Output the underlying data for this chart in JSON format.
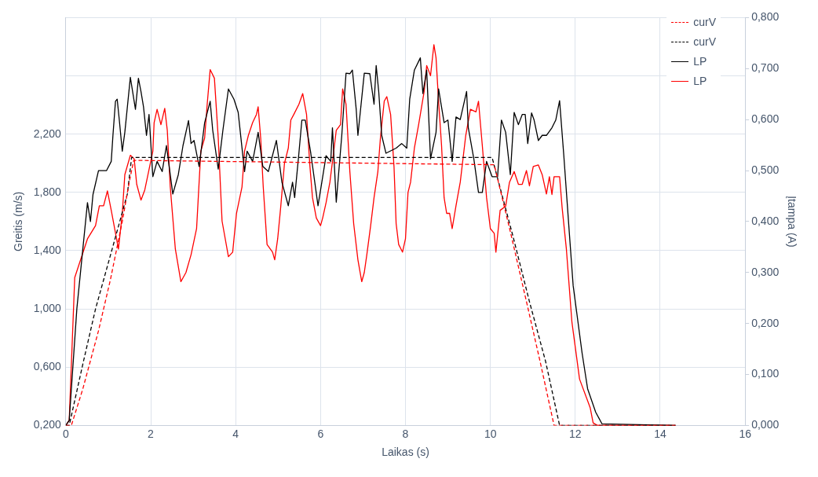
{
  "chart_data": {
    "type": "line",
    "xlabel": "Laikas (s)",
    "ylabel": "Greitis (m/s)",
    "y2label": "Įtampa (A)",
    "xlim": [
      0,
      16
    ],
    "xticks": [
      0,
      2,
      4,
      6,
      8,
      10,
      12,
      14,
      16
    ],
    "ylim": [
      0.2,
      3.0
    ],
    "yticks": [
      {
        "value": 0.2,
        "label": "0,200"
      },
      {
        "value": 0.6,
        "label": "0,600"
      },
      {
        "value": 1.0,
        "label": "1,000"
      },
      {
        "value": 1.4,
        "label": "1,400"
      },
      {
        "value": 1.8,
        "label": "1,800"
      },
      {
        "value": 2.2,
        "label": "2,200"
      },
      {
        "value": 2.6,
        "label": null
      },
      {
        "value": 3.0,
        "label": null
      }
    ],
    "y2lim": [
      0,
      0.8
    ],
    "y2ticks": [
      {
        "value": 0,
        "label": "0,000"
      },
      {
        "value": 0.1,
        "label": "0,100"
      },
      {
        "value": 0.2,
        "label": "0,200"
      },
      {
        "value": 0.3,
        "label": "0,300"
      },
      {
        "value": 0.4,
        "label": "0,400"
      },
      {
        "value": 0.5,
        "label": "0,500"
      },
      {
        "value": 0.6,
        "label": "0,600"
      },
      {
        "value": 0.7,
        "label": "0,700"
      },
      {
        "value": 0.8,
        "label": "0,800"
      }
    ],
    "grid": true,
    "legend": "top right",
    "marker": "none",
    "series": [
      {
        "name": "curV",
        "color": "#ff0000",
        "line_style": "dashed",
        "x": [
          0,
          0.13,
          0.4,
          0.77,
          1.05,
          1.33,
          1.5,
          1.6,
          10.09,
          10.47,
          10.85,
          11.17,
          11.5,
          14.36
        ],
        "values": [
          0.2,
          0.2,
          0.45,
          0.85,
          1.2,
          1.6,
          1.88,
          2.02,
          1.99,
          1.53,
          1.05,
          0.64,
          0.2,
          0.2
        ]
      },
      {
        "name": "curV",
        "color": "#000000",
        "line_style": "dashed",
        "x": [
          0,
          0.08,
          0.4,
          0.7,
          1.1,
          1.45,
          1.55,
          10.04,
          10.54,
          10.92,
          11.3,
          11.63,
          14.36
        ],
        "values": [
          0.2,
          0.2,
          0.62,
          1.0,
          1.42,
          1.79,
          2.04,
          2.04,
          1.49,
          1.05,
          0.64,
          0.2,
          0.2
        ]
      },
      {
        "name": "LP",
        "color": "#000000",
        "line_style": "solid",
        "axis": "y2",
        "x": [
          0,
          0.08,
          0.26,
          0.51,
          0.58,
          0.64,
          0.77,
          0.96,
          1.07,
          1.11,
          1.17,
          1.21,
          1.26,
          1.33,
          1.39,
          1.52,
          1.64,
          1.71,
          1.77,
          1.83,
          1.9,
          1.96,
          2.05,
          2.15,
          2.27,
          2.37,
          2.52,
          2.65,
          2.76,
          2.89,
          2.95,
          3.02,
          3.14,
          3.27,
          3.4,
          3.46,
          3.59,
          3.7,
          3.83,
          3.96,
          4.06,
          4.21,
          4.27,
          4.4,
          4.53,
          4.64,
          4.77,
          4.96,
          5.09,
          5.24,
          5.34,
          5.39,
          5.49,
          5.56,
          5.64,
          5.77,
          5.94,
          6.03,
          6.13,
          6.24,
          6.28,
          6.37,
          6.5,
          6.6,
          6.69,
          6.75,
          6.84,
          6.88,
          7.03,
          7.16,
          7.26,
          7.31,
          7.37,
          7.44,
          7.54,
          7.78,
          7.91,
          8.03,
          8.1,
          8.21,
          8.35,
          8.41,
          8.5,
          8.59,
          8.72,
          8.78,
          8.91,
          9.0,
          9.1,
          9.19,
          9.29,
          9.44,
          9.48,
          9.61,
          9.72,
          9.81,
          9.91,
          10.04,
          10.17,
          10.26,
          10.36,
          10.47,
          10.56,
          10.66,
          10.75,
          10.82,
          10.88,
          10.97,
          11.03,
          11.13,
          11.22,
          11.32,
          11.45,
          11.54,
          11.63,
          11.73,
          11.86,
          11.95,
          12.16,
          12.29,
          12.48,
          12.63,
          14.36
        ],
        "values": [
          0,
          0.01,
          0.229,
          0.437,
          0.4,
          0.453,
          0.5,
          0.5,
          0.518,
          0.569,
          0.636,
          0.64,
          0.599,
          0.538,
          0.575,
          0.683,
          0.62,
          0.681,
          0.655,
          0.625,
          0.569,
          0.61,
          0.488,
          0.518,
          0.498,
          0.549,
          0.454,
          0.492,
          0.549,
          0.598,
          0.553,
          0.559,
          0.508,
          0.594,
          0.636,
          0.579,
          0.503,
          0.579,
          0.66,
          0.64,
          0.614,
          0.498,
          0.538,
          0.518,
          0.575,
          0.508,
          0.498,
          0.559,
          0.477,
          0.431,
          0.477,
          0.447,
          0.534,
          0.599,
          0.599,
          0.534,
          0.431,
          0.477,
          0.529,
          0.518,
          0.584,
          0.438,
          0.569,
          0.691,
          0.69,
          0.697,
          0.62,
          0.569,
          0.691,
          0.69,
          0.63,
          0.706,
          0.655,
          0.569,
          0.534,
          0.544,
          0.553,
          0.544,
          0.64,
          0.697,
          0.721,
          0.651,
          0.697,
          0.523,
          0.575,
          0.66,
          0.594,
          0.599,
          0.518,
          0.605,
          0.6,
          0.655,
          0.584,
          0.523,
          0.457,
          0.457,
          0.518,
          0.488,
          0.488,
          0.599,
          0.575,
          0.492,
          0.614,
          0.59,
          0.61,
          0.61,
          0.553,
          0.613,
          0.599,
          0.559,
          0.569,
          0.569,
          0.584,
          0.599,
          0.637,
          0.529,
          0.377,
          0.274,
          0.142,
          0.072,
          0.026,
          0.003,
          0
        ]
      },
      {
        "name": "LP",
        "color": "#ff0000",
        "line_style": "solid",
        "axis": "y2",
        "x": [
          0,
          0.08,
          0.21,
          0.51,
          0.7,
          0.79,
          0.89,
          0.98,
          1.07,
          1.24,
          1.33,
          1.39,
          1.52,
          1.61,
          1.67,
          1.77,
          1.86,
          1.95,
          2.05,
          2.08,
          2.15,
          2.24,
          2.33,
          2.39,
          2.46,
          2.58,
          2.71,
          2.83,
          2.95,
          3.08,
          3.18,
          3.27,
          3.33,
          3.4,
          3.5,
          3.59,
          3.68,
          3.83,
          3.93,
          4.02,
          4.15,
          4.21,
          4.3,
          4.4,
          4.49,
          4.53,
          4.59,
          4.65,
          4.74,
          4.87,
          4.92,
          4.99,
          5.06,
          5.15,
          5.24,
          5.3,
          5.37,
          5.49,
          5.58,
          5.67,
          5.75,
          5.81,
          5.9,
          6.0,
          6.05,
          6.13,
          6.22,
          6.32,
          6.37,
          6.47,
          6.52,
          6.6,
          6.69,
          6.78,
          6.88,
          6.97,
          7.03,
          7.09,
          7.18,
          7.26,
          7.35,
          7.41,
          7.5,
          7.56,
          7.65,
          7.73,
          7.78,
          7.84,
          7.93,
          8.0,
          8.06,
          8.12,
          8.21,
          8.31,
          8.44,
          8.5,
          8.59,
          8.67,
          8.72,
          8.78,
          8.85,
          8.91,
          8.97,
          9.04,
          9.1,
          9.19,
          9.29,
          9.42,
          9.53,
          9.66,
          9.72,
          9.81,
          9.91,
          10.0,
          10.09,
          10.13,
          10.23,
          10.36,
          10.45,
          10.56,
          10.62,
          10.66,
          10.75,
          10.85,
          10.92,
          11.01,
          11.13,
          11.22,
          11.32,
          11.39,
          11.45,
          11.5,
          11.63,
          11.69,
          11.79,
          11.92,
          12.1,
          12.35,
          12.42,
          12.52,
          14.36
        ],
        "values": [
          0,
          0.01,
          0.29,
          0.366,
          0.392,
          0.431,
          0.431,
          0.46,
          0.422,
          0.346,
          0.416,
          0.492,
          0.53,
          0.523,
          0.473,
          0.442,
          0.462,
          0.498,
          0.538,
          0.594,
          0.62,
          0.59,
          0.622,
          0.579,
          0.468,
          0.346,
          0.282,
          0.3,
          0.335,
          0.386,
          0.538,
          0.564,
          0.63,
          0.698,
          0.681,
          0.564,
          0.401,
          0.331,
          0.34,
          0.416,
          0.468,
          0.538,
          0.569,
          0.594,
          0.61,
          0.625,
          0.564,
          0.468,
          0.355,
          0.34,
          0.325,
          0.366,
          0.427,
          0.514,
          0.544,
          0.599,
          0.61,
          0.63,
          0.651,
          0.61,
          0.508,
          0.447,
          0.407,
          0.392,
          0.407,
          0.437,
          0.477,
          0.544,
          0.579,
          0.59,
          0.66,
          0.63,
          0.498,
          0.396,
          0.325,
          0.282,
          0.3,
          0.335,
          0.392,
          0.447,
          0.498,
          0.564,
          0.636,
          0.645,
          0.61,
          0.508,
          0.396,
          0.355,
          0.34,
          0.366,
          0.457,
          0.477,
          0.544,
          0.59,
          0.655,
          0.706,
          0.686,
          0.747,
          0.721,
          0.636,
          0.549,
          0.447,
          0.416,
          0.416,
          0.386,
          0.431,
          0.477,
          0.569,
          0.62,
          0.615,
          0.636,
          0.549,
          0.447,
          0.386,
          0.377,
          0.34,
          0.422,
          0.43,
          0.477,
          0.498,
          0.483,
          0.473,
          0.473,
          0.5,
          0.47,
          0.508,
          0.511,
          0.492,
          0.454,
          0.488,
          0.453,
          0.488,
          0.488,
          0.427,
          0.346,
          0.203,
          0.091,
          0.035,
          0.005,
          0,
          0
        ]
      }
    ]
  }
}
